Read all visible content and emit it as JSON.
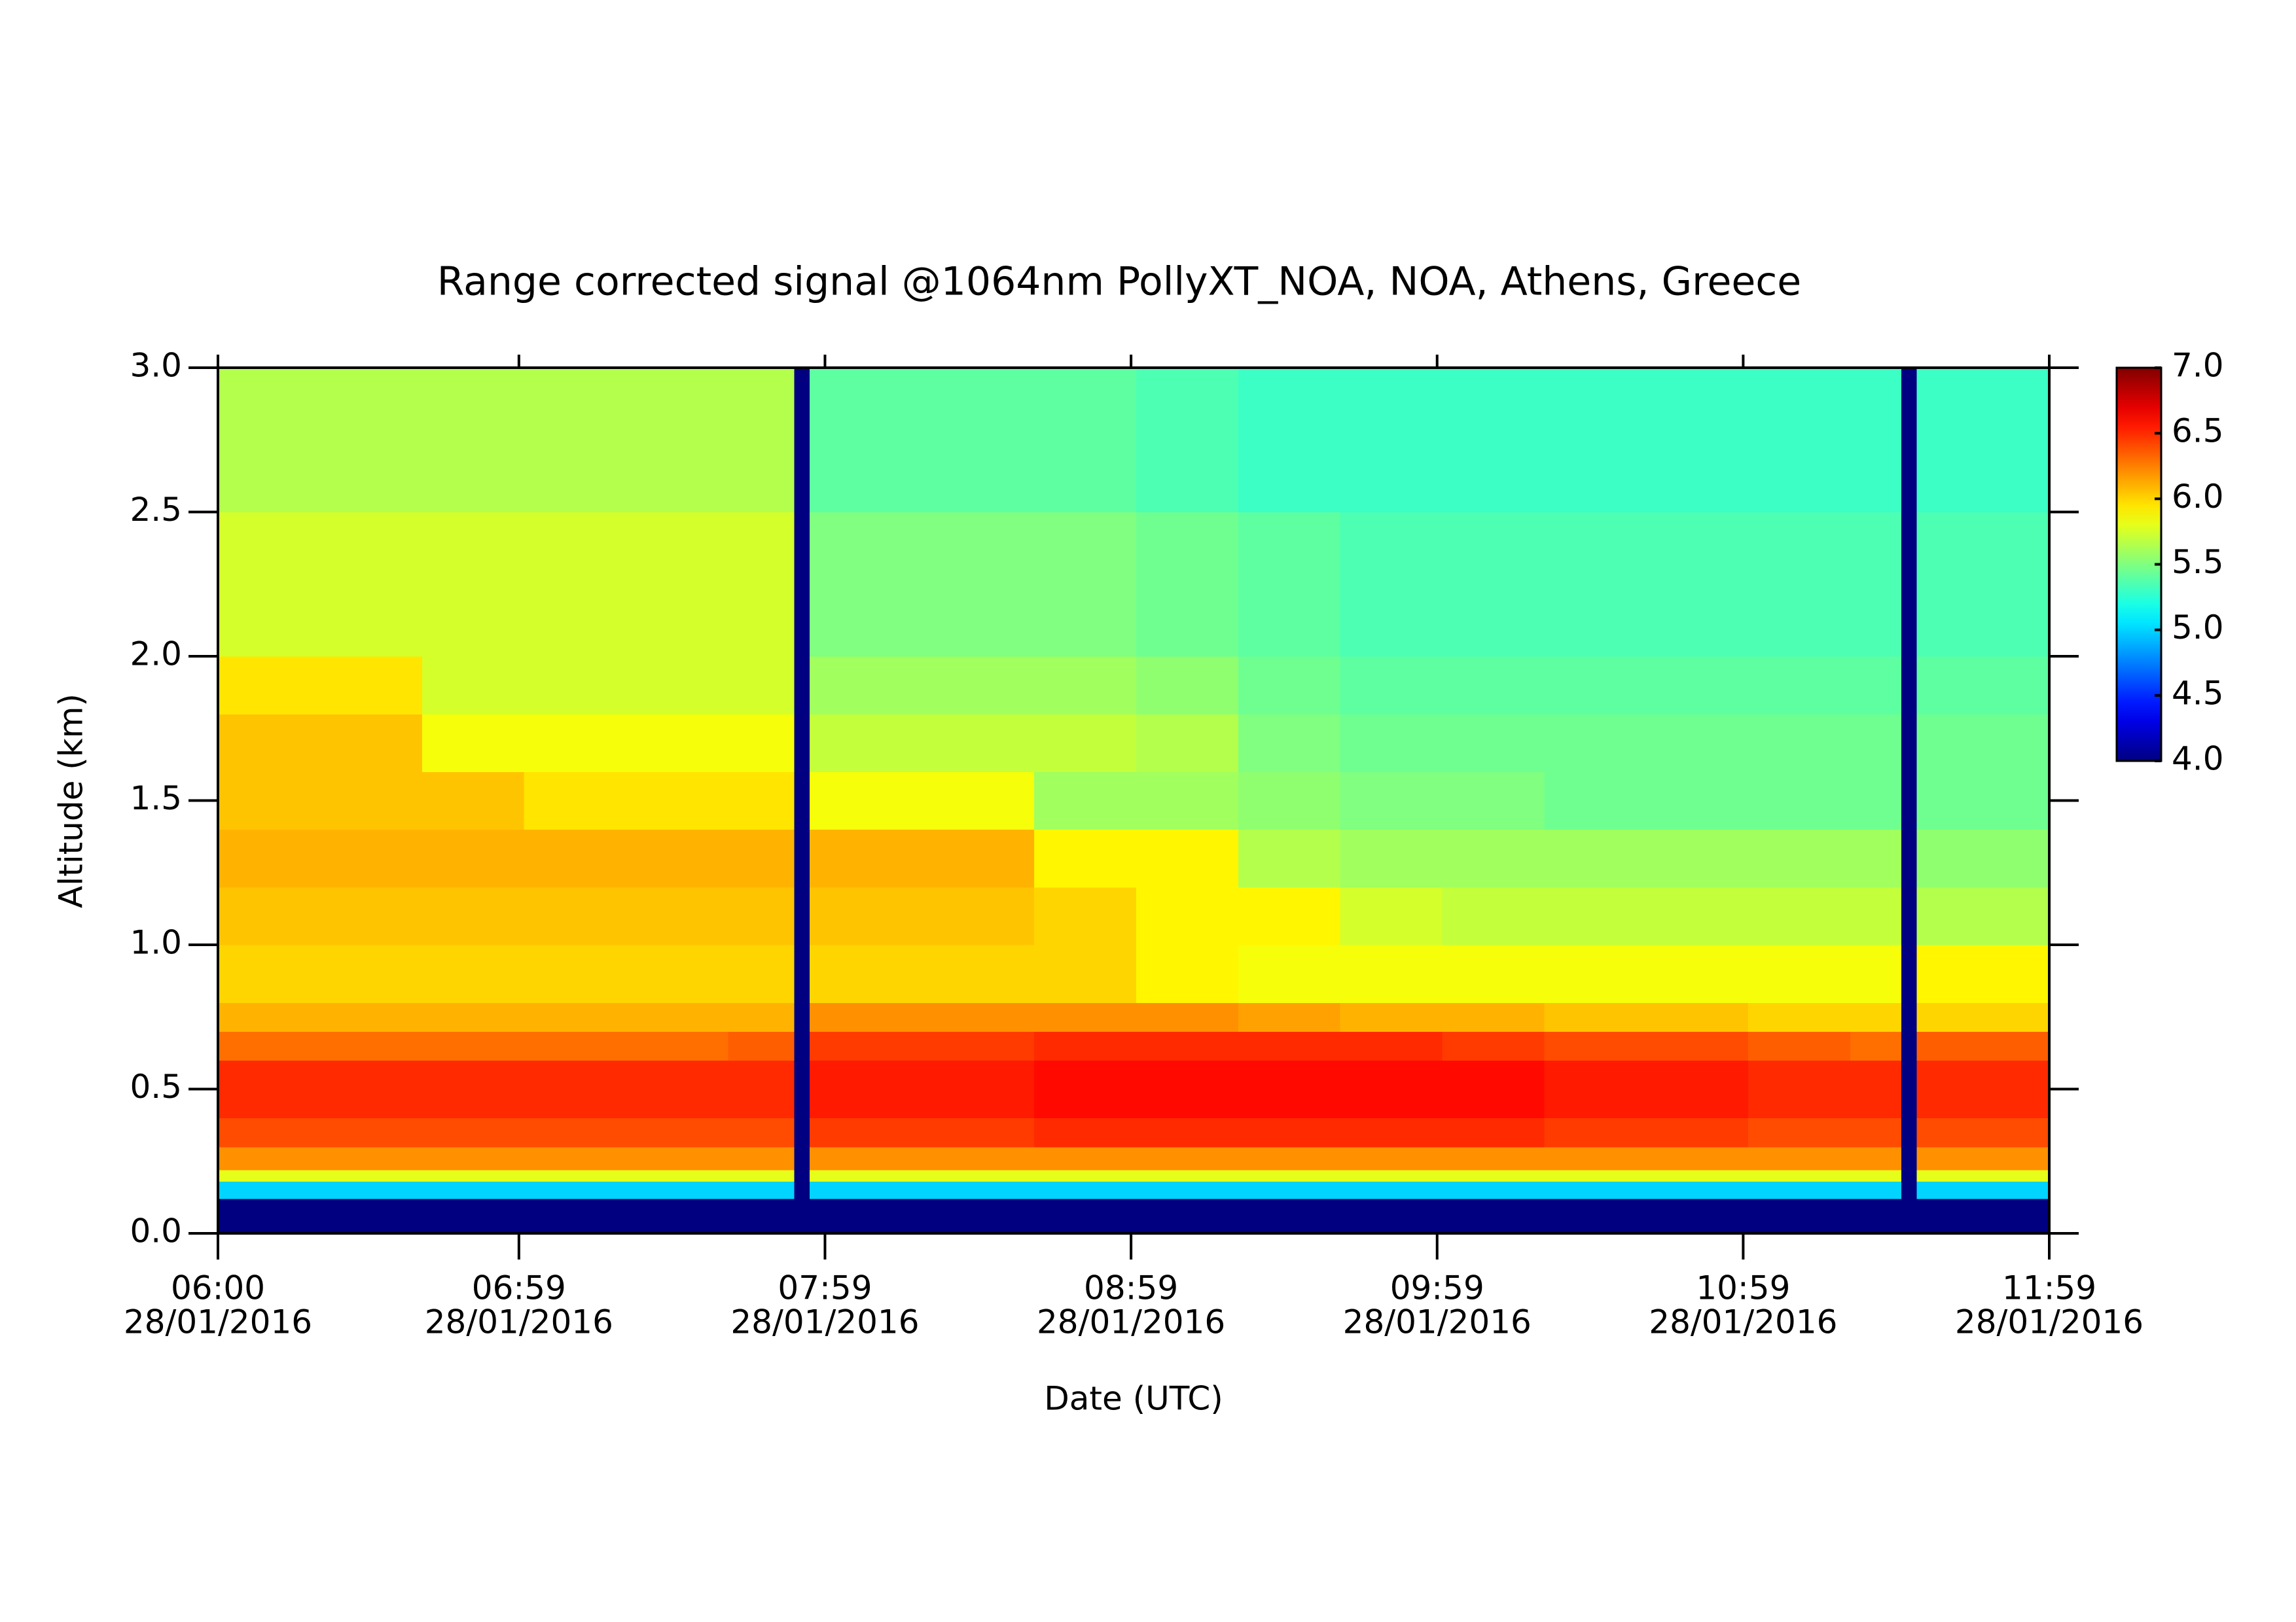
{
  "chart_data": {
    "type": "heatmap",
    "title": "Range corrected signal @1064nm  PollyXT_NOA, NOA, Athens, Greece",
    "x_label": "Date (UTC)",
    "y_label": "Altitude (km)",
    "colormap": "jet",
    "x_edges": [
      0,
      20,
      40,
      60,
      80,
      100,
      113,
      116,
      140,
      160,
      180,
      200,
      220,
      240,
      260,
      280,
      300,
      320,
      330,
      333,
      359
    ],
    "y_edges": [
      0,
      0.12,
      0.18,
      0.22,
      0.3,
      0.4,
      0.5,
      0.6,
      0.7,
      0.8,
      1.0,
      1.2,
      1.4,
      1.6,
      1.8,
      2.0,
      2.5,
      3.0
    ],
    "z": [
      [
        4.0,
        4.0,
        4.0,
        4.0,
        4.0,
        4.0,
        4.0,
        4.0,
        4.0,
        4.0,
        4.0,
        4.0,
        4.0,
        4.0,
        4.0,
        4.0,
        4.0,
        4.0,
        4.0,
        4.0
      ],
      [
        5.0,
        5.0,
        5.0,
        5.0,
        5.0,
        5.0,
        4.0,
        5.0,
        5.0,
        5.0,
        5.0,
        5.0,
        5.0,
        5.0,
        5.0,
        5.0,
        5.0,
        5.0,
        4.0,
        5.0
      ],
      [
        5.8,
        5.8,
        5.8,
        5.8,
        5.8,
        5.8,
        4.0,
        5.8,
        5.8,
        5.8,
        5.8,
        5.8,
        5.8,
        5.8,
        5.8,
        5.8,
        5.8,
        5.8,
        4.0,
        5.8
      ],
      [
        6.2,
        6.2,
        6.2,
        6.2,
        6.2,
        6.2,
        4.0,
        6.2,
        6.2,
        6.2,
        6.2,
        6.2,
        6.2,
        6.2,
        6.2,
        6.2,
        6.2,
        6.2,
        4.0,
        6.2
      ],
      [
        6.4,
        6.4,
        6.4,
        6.4,
        6.4,
        6.4,
        4.0,
        6.45,
        6.45,
        6.5,
        6.5,
        6.5,
        6.5,
        6.5,
        6.45,
        6.45,
        6.4,
        6.4,
        4.0,
        6.4
      ],
      [
        6.5,
        6.5,
        6.5,
        6.5,
        6.5,
        6.5,
        4.0,
        6.55,
        6.55,
        6.6,
        6.6,
        6.6,
        6.6,
        6.6,
        6.55,
        6.55,
        6.5,
        6.5,
        4.0,
        6.5
      ],
      [
        6.5,
        6.5,
        6.5,
        6.5,
        6.5,
        6.5,
        4.0,
        6.55,
        6.55,
        6.6,
        6.6,
        6.6,
        6.6,
        6.6,
        6.55,
        6.55,
        6.5,
        6.5,
        4.0,
        6.5
      ],
      [
        6.3,
        6.3,
        6.3,
        6.3,
        6.3,
        6.35,
        4.0,
        6.45,
        6.45,
        6.5,
        6.5,
        6.5,
        6.5,
        6.45,
        6.4,
        6.4,
        6.35,
        6.3,
        4.0,
        6.35
      ],
      [
        6.1,
        6.1,
        6.1,
        6.1,
        6.1,
        6.1,
        4.0,
        6.2,
        6.2,
        6.2,
        6.2,
        6.15,
        6.1,
        6.1,
        6.05,
        6.05,
        6.0,
        6.0,
        4.0,
        6.0
      ],
      [
        6.0,
        6.0,
        6.0,
        6.0,
        6.0,
        6.0,
        4.0,
        6.0,
        6.0,
        6.0,
        5.9,
        5.85,
        5.85,
        5.85,
        5.85,
        5.85,
        5.85,
        5.85,
        4.0,
        5.9
      ],
      [
        6.05,
        6.05,
        6.05,
        6.05,
        6.05,
        6.05,
        4.0,
        6.05,
        6.05,
        6.0,
        5.9,
        5.9,
        5.75,
        5.7,
        5.7,
        5.7,
        5.7,
        5.7,
        4.0,
        5.65
      ],
      [
        6.1,
        6.1,
        6.1,
        6.1,
        6.1,
        6.1,
        4.0,
        6.1,
        6.1,
        5.9,
        5.9,
        5.65,
        5.6,
        5.6,
        5.6,
        5.6,
        5.6,
        5.6,
        4.0,
        5.55
      ],
      [
        6.05,
        6.05,
        6.05,
        5.95,
        5.95,
        5.95,
        4.0,
        5.85,
        5.85,
        5.6,
        5.6,
        5.55,
        5.5,
        5.5,
        5.45,
        5.45,
        5.45,
        5.45,
        4.0,
        5.45
      ],
      [
        6.05,
        6.05,
        5.85,
        5.85,
        5.85,
        5.85,
        4.0,
        5.7,
        5.7,
        5.7,
        5.65,
        5.5,
        5.45,
        5.45,
        5.45,
        5.45,
        5.45,
        5.45,
        4.0,
        5.45
      ],
      [
        5.95,
        5.95,
        5.75,
        5.75,
        5.75,
        5.75,
        4.0,
        5.6,
        5.6,
        5.6,
        5.55,
        5.45,
        5.4,
        5.4,
        5.4,
        5.4,
        5.4,
        5.4,
        4.0,
        5.4
      ],
      [
        5.75,
        5.75,
        5.75,
        5.75,
        5.75,
        5.75,
        4.0,
        5.5,
        5.5,
        5.5,
        5.45,
        5.4,
        5.35,
        5.35,
        5.35,
        5.35,
        5.35,
        5.35,
        4.0,
        5.35
      ],
      [
        5.65,
        5.65,
        5.65,
        5.65,
        5.65,
        5.65,
        4.0,
        5.4,
        5.4,
        5.4,
        5.35,
        5.3,
        5.3,
        5.3,
        5.3,
        5.3,
        5.3,
        5.3,
        4.0,
        5.3
      ]
    ],
    "xlim": [
      0,
      359
    ],
    "ylim": [
      0,
      3.0
    ],
    "zlim": [
      4.0,
      7.0
    ],
    "xticks": [
      {
        "value": 0,
        "label": "06:00",
        "sublabel": "28/01/2016"
      },
      {
        "value": 59,
        "label": "06:59",
        "sublabel": "28/01/2016"
      },
      {
        "value": 119,
        "label": "07:59",
        "sublabel": "28/01/2016"
      },
      {
        "value": 179,
        "label": "08:59",
        "sublabel": "28/01/2016"
      },
      {
        "value": 239,
        "label": "09:59",
        "sublabel": "28/01/2016"
      },
      {
        "value": 299,
        "label": "10:59",
        "sublabel": "28/01/2016"
      },
      {
        "value": 359,
        "label": "11:59",
        "sublabel": "28/01/2016"
      }
    ],
    "yticks": [
      {
        "value": 0,
        "label": "0.0"
      },
      0.5,
      {
        "value": 1,
        "label": "1.0"
      },
      1.5,
      {
        "value": 2,
        "label": "2.0"
      },
      2.5,
      {
        "value": 3,
        "label": "3.0"
      }
    ],
    "zticks": [
      {
        "value": 4,
        "label": "4.0"
      },
      4.5,
      {
        "value": 5,
        "label": "5.0"
      },
      5.5,
      {
        "value": 6,
        "label": "6.0"
      },
      6.5,
      {
        "value": 7,
        "label": "7.0"
      }
    ]
  }
}
